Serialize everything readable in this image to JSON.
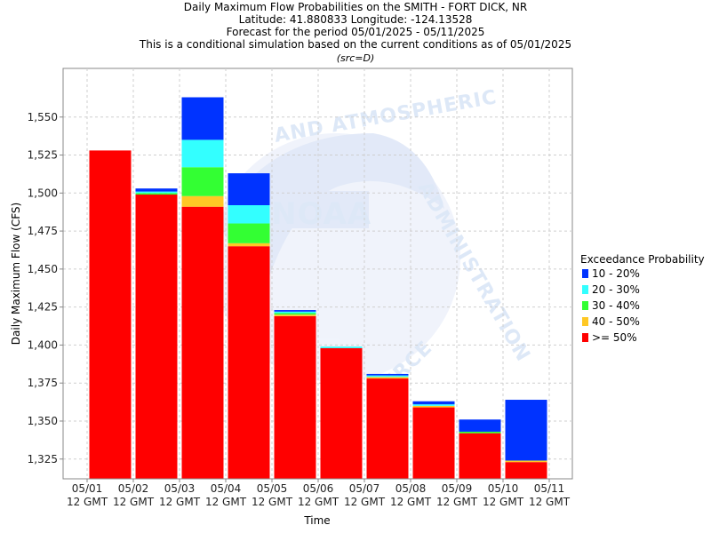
{
  "chart_data": {
    "type": "bar",
    "stacked": true,
    "title": [
      "Daily Maximum Flow Probabilities on the SMITH - FORT DICK, NR",
      "Latitude: 41.880833 Longitude: -124.13528",
      "Forecast for the period 05/01/2025 - 05/11/2025",
      "This is a conditional simulation based on the current conditions as of 05/01/2025"
    ],
    "subtitle": "(src=D)",
    "xlabel": "Time",
    "ylabel": "Daily Maximum Flow (CFS)",
    "ylim": [
      1312,
      1582
    ],
    "yticks": [
      1325,
      1350,
      1375,
      1400,
      1425,
      1450,
      1475,
      1500,
      1525,
      1550
    ],
    "ytick_labels": [
      "1,325",
      "1,350",
      "1,375",
      "1,400",
      "1,425",
      "1,450",
      "1,475",
      "1,500",
      "1,525",
      "1,550"
    ],
    "x_ticks": [
      [
        "05/01",
        "12 GMT"
      ],
      [
        "05/02",
        "12 GMT"
      ],
      [
        "05/03",
        "12 GMT"
      ],
      [
        "05/04",
        "12 GMT"
      ],
      [
        "05/05",
        "12 GMT"
      ],
      [
        "05/06",
        "12 GMT"
      ],
      [
        "05/07",
        "12 GMT"
      ],
      [
        "05/08",
        "12 GMT"
      ],
      [
        "05/09",
        "12 GMT"
      ],
      [
        "05/10",
        "12 GMT"
      ],
      [
        "05/11",
        "12 GMT"
      ]
    ],
    "grid": true,
    "legend_title": "Exceedance Probability",
    "legend_position": "right",
    "series": [
      {
        "name": ">= 50%",
        "color": "#ff0000",
        "top": [
          1528,
          1499,
          1491,
          1465,
          1419,
          1398,
          1378,
          1359,
          1342,
          1323
        ]
      },
      {
        "name": "40 - 50%",
        "color": "#ffc825",
        "top": [
          1528,
          1499,
          1498,
          1467,
          1420,
          1398,
          1379,
          1360,
          1342,
          1324
        ]
      },
      {
        "name": "30 - 40%",
        "color": "#33ff33",
        "top": [
          1528,
          1500,
          1517,
          1480,
          1421,
          1398,
          1379,
          1360,
          1343,
          1324
        ]
      },
      {
        "name": "20 - 30%",
        "color": "#33ffff",
        "top": [
          1528,
          1501,
          1535,
          1492,
          1422,
          1399,
          1380,
          1361,
          1343,
          1324
        ]
      },
      {
        "name": "10 - 20%",
        "color": "#0033ff",
        "top": [
          1528,
          1503,
          1563,
          1513,
          1423,
          1399,
          1381,
          1363,
          1351,
          1364
        ]
      }
    ],
    "legend_order": [
      "10 - 20%",
      "20 - 30%",
      "30 - 40%",
      "40 - 50%",
      ">= 50%"
    ]
  }
}
